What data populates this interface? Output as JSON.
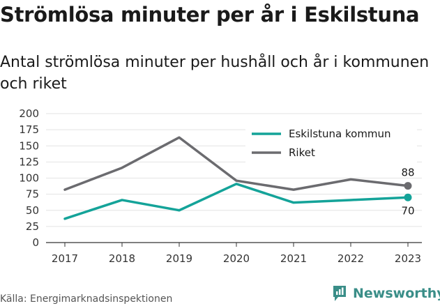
{
  "chart_data": {
    "type": "line",
    "title": "Strömlösa minuter per år i Eskilstuna",
    "subtitle": "Antal strömlösa minuter per hushåll och år i kommunen och riket",
    "x": [
      "2017",
      "2018",
      "2019",
      "2020",
      "2021",
      "2022",
      "2023"
    ],
    "ylim": [
      0,
      200
    ],
    "yticks": [
      "0",
      "25",
      "50",
      "75",
      "100",
      "125",
      "150",
      "175",
      "200"
    ],
    "grid": "horizontal",
    "legend_position": "top-right",
    "series": [
      {
        "name": "Eskilstuna kommun",
        "color": "#14a399",
        "values": [
          37,
          66,
          50,
          91,
          62,
          66,
          70
        ],
        "end_label": "70"
      },
      {
        "name": "Riket",
        "color": "#6b6b6f",
        "values": [
          82,
          116,
          163,
          96,
          82,
          98,
          88
        ],
        "end_label": "88"
      }
    ]
  },
  "source": "Källa: Energimarknadsinspektionen",
  "brand": {
    "name": "Newsworthy",
    "icon": "newsworthy-logo-icon",
    "color": "#3a8e88"
  }
}
